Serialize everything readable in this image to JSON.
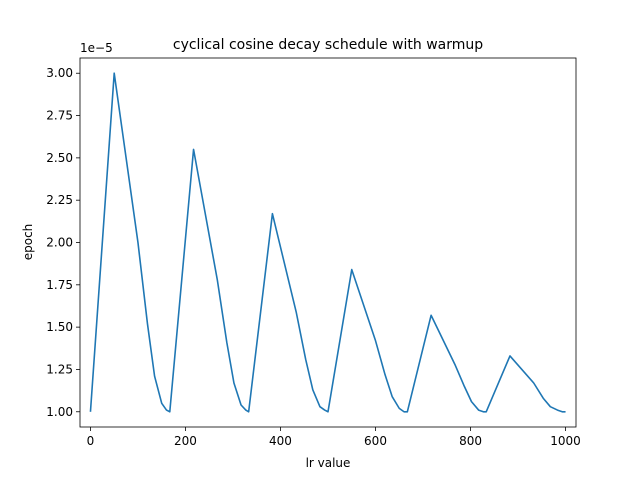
{
  "chart_data": {
    "type": "line",
    "title": "cyclical cosine decay schedule with warmup",
    "xlabel": "lr value",
    "ylabel": "epoch",
    "y_offset_label": "1e−5",
    "xlim": [
      -22,
      1022
    ],
    "ylim": [
      0.91,
      3.09
    ],
    "x_ticks": [
      0,
      200,
      400,
      600,
      800,
      1000
    ],
    "x_tick_labels": [
      "0",
      "200",
      "400",
      "600",
      "800",
      "1000"
    ],
    "y_ticks": [
      1.0,
      1.25,
      1.5,
      1.75,
      2.0,
      2.25,
      2.5,
      2.75,
      3.0
    ],
    "y_tick_labels": [
      "1.00",
      "1.25",
      "1.50",
      "1.75",
      "2.00",
      "2.25",
      "2.50",
      "2.75",
      "3.00"
    ],
    "grid": false,
    "line_color": "#1f77b4",
    "series": [
      {
        "x": [
          0,
          50,
          100,
          120,
          135,
          150,
          160,
          167,
          217,
          267,
          287,
          302,
          317,
          327,
          333,
          383,
          433,
          453,
          468,
          483,
          493,
          500,
          550,
          600,
          620,
          635,
          650,
          660,
          667,
          717,
          767,
          787,
          802,
          817,
          827,
          833,
          883,
          933,
          953,
          968,
          983,
          993,
          1000
        ],
        "y": [
          1.0,
          3.0,
          2.0,
          1.52,
          1.21,
          1.05,
          1.01,
          1.0,
          2.55,
          1.78,
          1.41,
          1.17,
          1.04,
          1.01,
          1.0,
          2.17,
          1.59,
          1.31,
          1.13,
          1.03,
          1.01,
          1.0,
          1.84,
          1.42,
          1.22,
          1.09,
          1.02,
          1.0,
          1.0,
          1.57,
          1.28,
          1.15,
          1.06,
          1.01,
          1.0,
          1.0,
          1.33,
          1.17,
          1.08,
          1.03,
          1.01,
          1.0,
          1.0
        ]
      }
    ]
  }
}
